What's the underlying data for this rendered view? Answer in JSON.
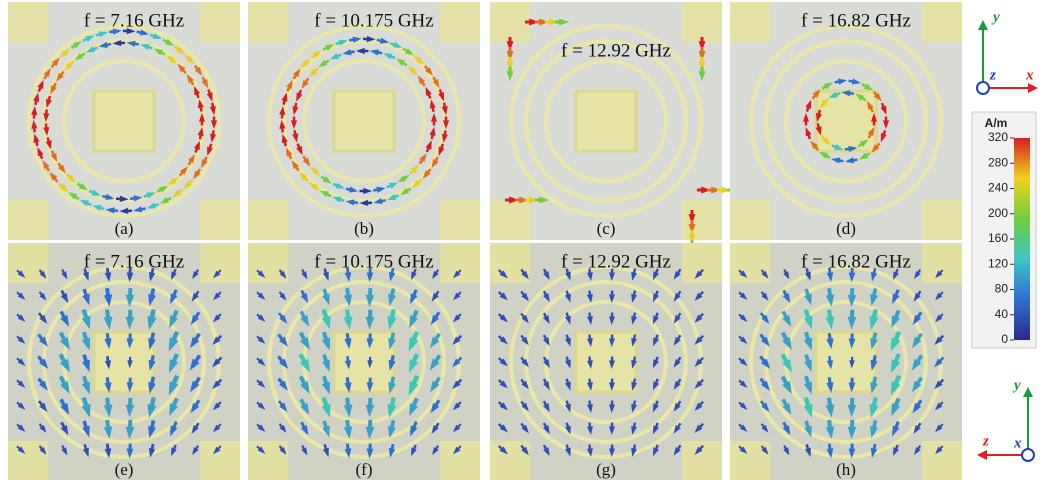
{
  "panels": [
    {
      "frequency": "f = 7.16 GHz",
      "label": "(a)"
    },
    {
      "frequency": "f = 10.175 GHz",
      "label": "(b)"
    },
    {
      "frequency": "f = 12.92 GHz",
      "label": "(c)"
    },
    {
      "frequency": "f = 16.82 GHz",
      "label": "(d)"
    },
    {
      "frequency": "f = 7.16 GHz",
      "label": "(e)"
    },
    {
      "frequency": "f = 10.175 GHz",
      "label": "(f)"
    },
    {
      "frequency": "f = 12.92 GHz",
      "label": "(g)"
    },
    {
      "frequency": "f = 16.82 GHz",
      "label": "(h)"
    }
  ],
  "colorbar": {
    "unit": "A/m",
    "ticks": [
      0,
      40,
      80,
      120,
      160,
      200,
      240,
      280,
      320
    ]
  },
  "triads": [
    {
      "up": "y",
      "out": "z",
      "side": "x"
    },
    {
      "up": "y",
      "side": "z",
      "out": "x"
    }
  ]
}
